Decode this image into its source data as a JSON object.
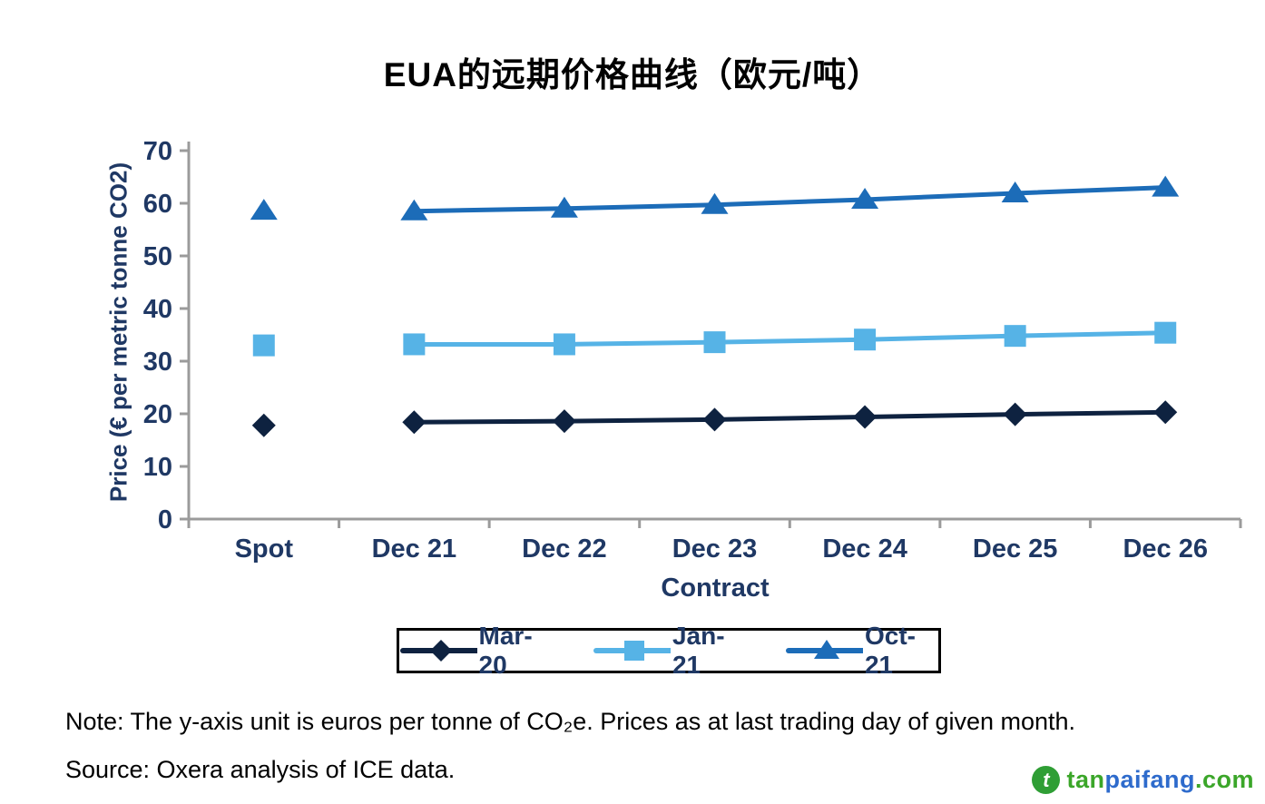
{
  "title": "EUA的远期价格曲线（欧元/吨）",
  "chart_data": {
    "type": "line",
    "title": "EUA的远期价格曲线（欧元/吨）",
    "xlabel": "Contract",
    "ylabel": "Price (€ per metric tonne CO2)",
    "categories": [
      "Spot",
      "Dec 21",
      "Dec 22",
      "Dec 23",
      "Dec 24",
      "Dec 25",
      "Dec 26"
    ],
    "ylim": [
      0,
      70
    ],
    "yticks": [
      0,
      10,
      20,
      30,
      40,
      50,
      60,
      70
    ],
    "grid": false,
    "legend_position": "bottom",
    "series": [
      {
        "name": "Mar-20",
        "marker": "diamond",
        "color": "#0E2240",
        "line_start_index": 1,
        "values": [
          17.8,
          18.4,
          18.6,
          18.9,
          19.4,
          19.9,
          20.3
        ]
      },
      {
        "name": "Jan-21",
        "marker": "square",
        "color": "#56B3E6",
        "line_start_index": 1,
        "values": [
          33.0,
          33.2,
          33.2,
          33.6,
          34.1,
          34.8,
          35.4
        ]
      },
      {
        "name": "Oct-21",
        "marker": "triangle",
        "color": "#1C6CB8",
        "line_start_index": 1,
        "values": [
          58.6,
          58.5,
          59.0,
          59.7,
          60.7,
          61.9,
          63.0
        ]
      }
    ]
  },
  "footnotes": {
    "note": "Note: The y-axis unit is euros per tonne of CO₂e. Prices as at last trading day of given month.",
    "source": "Source: Oxera analysis of ICE data."
  },
  "watermark": {
    "icon_letter": "t",
    "part_tan": "tan",
    "part_paifang": "paifang",
    "part_com": ".com"
  },
  "colors": {
    "axis_text": "#1F3864",
    "axis_line": "#9B9B9B",
    "title_text": "#000000",
    "legend_border": "#000000"
  }
}
